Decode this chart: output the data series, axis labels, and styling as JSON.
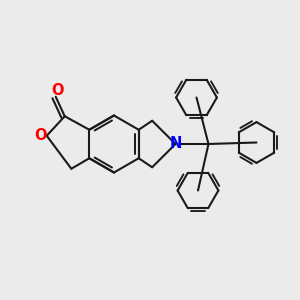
{
  "bg_color": "#ebebeb",
  "bond_color": "#1a1a1a",
  "oxygen_color": "#ff0000",
  "nitrogen_color": "#0000ff",
  "line_width": 1.5,
  "figsize": [
    3.0,
    3.0
  ],
  "dpi": 100,
  "xlim": [
    0,
    10
  ],
  "ylim": [
    0,
    10
  ]
}
